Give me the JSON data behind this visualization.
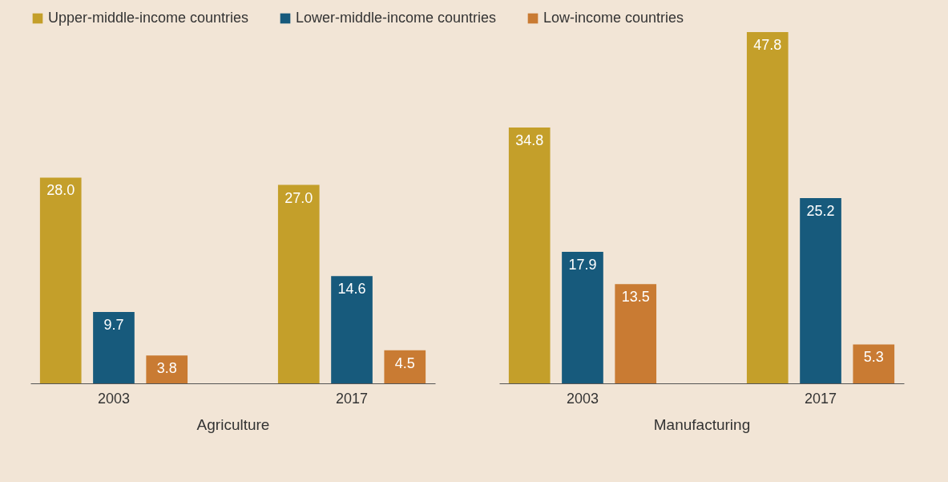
{
  "chart_data": [
    {
      "type": "bar",
      "xlabel": "Agriculture",
      "categories": [
        "2003",
        "2017"
      ],
      "legend": "top",
      "series": [
        {
          "name": "Upper-middle-income countries",
          "color": "#c49f2a",
          "values": [
            28.0,
            27.0
          ],
          "value_labels": [
            "28.0",
            "27.0"
          ]
        },
        {
          "name": "Lower-middle-income countries",
          "color": "#175a7c",
          "values": [
            9.7,
            14.6
          ],
          "value_labels": [
            "9.7",
            "14.6"
          ]
        },
        {
          "name": "Low-income countries",
          "color": "#c97b33",
          "values": [
            3.8,
            4.5
          ],
          "value_labels": [
            "3.8",
            "4.5"
          ]
        }
      ]
    },
    {
      "type": "bar",
      "xlabel": "Manufacturing",
      "categories": [
        "2003",
        "2017"
      ],
      "legend": "top",
      "series": [
        {
          "name": "Upper-middle-income countries",
          "color": "#c49f2a",
          "values": [
            34.8,
            47.8
          ],
          "value_labels": [
            "34.8",
            "47.8"
          ]
        },
        {
          "name": "Lower-middle-income countries",
          "color": "#175a7c",
          "values": [
            17.9,
            25.2
          ],
          "value_labels": [
            "17.9",
            "25.2"
          ]
        },
        {
          "name": "Low-income countries",
          "color": "#c97b33",
          "values": [
            13.5,
            5.3
          ],
          "value_labels": [
            "13.5",
            "5.3"
          ]
        }
      ]
    }
  ]
}
